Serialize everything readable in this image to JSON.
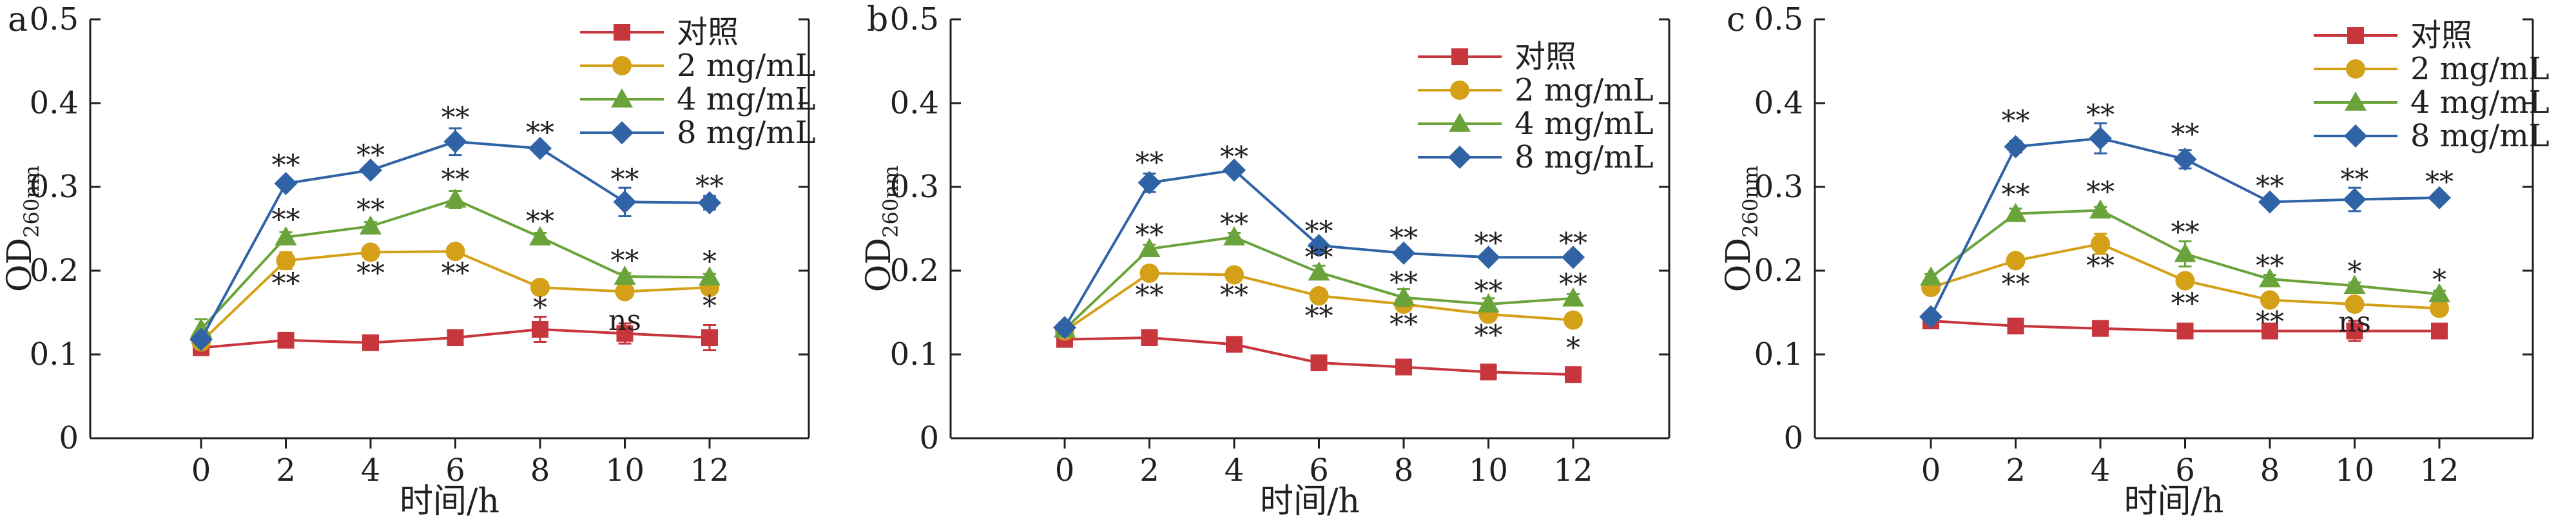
{
  "series_colors": [
    "#c8363d",
    "#d4a017",
    "#6aa33a",
    "#2f63a6"
  ],
  "marker_shapes": [
    "square",
    "circle",
    "triangle",
    "diamond"
  ],
  "chart_data": [
    {
      "type": "line",
      "panel_label": "a",
      "xlabel": "时间/h",
      "ylabel": "OD",
      "ylabel_subscript": "260nm",
      "x": [
        0,
        2,
        4,
        6,
        8,
        10,
        12
      ],
      "x_tick_labels": [
        "0",
        "2",
        "4",
        "6",
        "8",
        "10",
        "12"
      ],
      "ylim": [
        0,
        0.5
      ],
      "y_ticks": [
        0,
        0.1,
        0.2,
        0.3,
        0.4,
        0.5
      ],
      "y_tick_labels": [
        "0",
        "0.1",
        "0.2",
        "0.3",
        "0.4",
        "0.5"
      ],
      "grid": false,
      "legend_position": "top-right",
      "series": [
        {
          "name": "对照",
          "values": [
            0.108,
            0.117,
            0.114,
            0.12,
            0.13,
            0.125,
            0.12
          ],
          "errors": [
            0.008,
            0.004,
            0.004,
            0.004,
            0.015,
            0.012,
            0.015
          ]
        },
        {
          "name": "2 mg/mL",
          "values": [
            0.115,
            0.212,
            0.222,
            0.223,
            0.18,
            0.175,
            0.18
          ],
          "errors": [
            0.006,
            0.01,
            0.005,
            0.004,
            0.004,
            0.004,
            0.006
          ]
        },
        {
          "name": "4 mg/mL",
          "values": [
            0.13,
            0.24,
            0.253,
            0.285,
            0.24,
            0.193,
            0.192
          ],
          "errors": [
            0.012,
            0.006,
            0.005,
            0.01,
            0.005,
            0.004,
            0.004
          ]
        },
        {
          "name": "8 mg/mL",
          "values": [
            0.118,
            0.304,
            0.32,
            0.354,
            0.346,
            0.282,
            0.281
          ],
          "errors": [
            0.006,
            0.004,
            0.004,
            0.016,
            0.006,
            0.017,
            0.008
          ]
        }
      ],
      "annotations": [
        {
          "x": 2,
          "y": 0.325,
          "text": "**"
        },
        {
          "x": 4,
          "y": 0.337,
          "text": "**"
        },
        {
          "x": 6,
          "y": 0.382,
          "text": "**"
        },
        {
          "x": 8,
          "y": 0.364,
          "text": "**"
        },
        {
          "x": 10,
          "y": 0.308,
          "text": "**"
        },
        {
          "x": 12,
          "y": 0.3,
          "text": "**"
        },
        {
          "x": 2,
          "y": 0.26,
          "text": "**"
        },
        {
          "x": 4,
          "y": 0.272,
          "text": "**"
        },
        {
          "x": 6,
          "y": 0.308,
          "text": "**"
        },
        {
          "x": 8,
          "y": 0.258,
          "text": "**"
        },
        {
          "x": 10,
          "y": 0.211,
          "text": "**"
        },
        {
          "x": 12,
          "y": 0.21,
          "text": "*"
        },
        {
          "x": 2,
          "y": 0.184,
          "text": "**"
        },
        {
          "x": 4,
          "y": 0.196,
          "text": "**"
        },
        {
          "x": 6,
          "y": 0.196,
          "text": "**"
        },
        {
          "x": 8,
          "y": 0.155,
          "text": "*"
        },
        {
          "x": 10,
          "y": 0.14,
          "text": "ns"
        },
        {
          "x": 12,
          "y": 0.157,
          "text": "*"
        }
      ]
    },
    {
      "type": "line",
      "panel_label": "b",
      "xlabel": "时间/h",
      "ylabel": "OD",
      "ylabel_subscript": "260nm",
      "x": [
        0,
        2,
        4,
        6,
        8,
        10,
        12
      ],
      "x_tick_labels": [
        "0",
        "2",
        "4",
        "6",
        "8",
        "10",
        "12"
      ],
      "ylim": [
        0,
        0.5
      ],
      "y_ticks": [
        0,
        0.1,
        0.2,
        0.3,
        0.4,
        0.5
      ],
      "y_tick_labels": [
        "0",
        "0.1",
        "0.2",
        "0.3",
        "0.4",
        "0.5"
      ],
      "grid": false,
      "legend_position": "top-right",
      "series": [
        {
          "name": "对照",
          "values": [
            0.118,
            0.12,
            0.112,
            0.09,
            0.085,
            0.079,
            0.076
          ],
          "errors": [
            0.004,
            0.004,
            0.006,
            0.004,
            0.003,
            0.003,
            0.005
          ]
        },
        {
          "name": "2 mg/mL",
          "values": [
            0.128,
            0.197,
            0.195,
            0.17,
            0.16,
            0.148,
            0.141
          ],
          "errors": [
            0.005,
            0.005,
            0.004,
            0.004,
            0.005,
            0.004,
            0.006
          ]
        },
        {
          "name": "4 mg/mL",
          "values": [
            0.13,
            0.226,
            0.24,
            0.198,
            0.168,
            0.16,
            0.167
          ],
          "errors": [
            0.005,
            0.005,
            0.005,
            0.008,
            0.01,
            0.007,
            0.005
          ]
        },
        {
          "name": "8 mg/mL",
          "values": [
            0.132,
            0.305,
            0.32,
            0.23,
            0.221,
            0.216,
            0.216
          ],
          "errors": [
            0.006,
            0.011,
            0.004,
            0.006,
            0.006,
            0.004,
            0.006
          ]
        }
      ],
      "annotations": [
        {
          "x": 2,
          "y": 0.328,
          "text": "**"
        },
        {
          "x": 4,
          "y": 0.335,
          "text": "**"
        },
        {
          "x": 6,
          "y": 0.246,
          "text": "**"
        },
        {
          "x": 8,
          "y": 0.238,
          "text": "**"
        },
        {
          "x": 10,
          "y": 0.232,
          "text": "**"
        },
        {
          "x": 12,
          "y": 0.232,
          "text": "**"
        },
        {
          "x": 2,
          "y": 0.242,
          "text": "**"
        },
        {
          "x": 4,
          "y": 0.255,
          "text": "**"
        },
        {
          "x": 6,
          "y": 0.215,
          "text": "**"
        },
        {
          "x": 8,
          "y": 0.185,
          "text": "**"
        },
        {
          "x": 10,
          "y": 0.175,
          "text": "**"
        },
        {
          "x": 12,
          "y": 0.183,
          "text": "**"
        },
        {
          "x": 2,
          "y": 0.17,
          "text": "**"
        },
        {
          "x": 4,
          "y": 0.17,
          "text": "**"
        },
        {
          "x": 6,
          "y": 0.145,
          "text": "**"
        },
        {
          "x": 8,
          "y": 0.135,
          "text": "**"
        },
        {
          "x": 10,
          "y": 0.122,
          "text": "**"
        },
        {
          "x": 12,
          "y": 0.107,
          "text": "*"
        }
      ]
    },
    {
      "type": "line",
      "panel_label": "c",
      "xlabel": "时间/h",
      "ylabel": "OD",
      "ylabel_subscript": "260nm",
      "x": [
        0,
        2,
        4,
        6,
        8,
        10,
        12
      ],
      "x_tick_labels": [
        "0",
        "2",
        "4",
        "6",
        "8",
        "10",
        "12"
      ],
      "ylim": [
        0,
        0.5
      ],
      "y_ticks": [
        0,
        0.1,
        0.2,
        0.3,
        0.4,
        0.5
      ],
      "y_tick_labels": [
        "0",
        "0.1",
        "0.2",
        "0.3",
        "0.4",
        "0.5"
      ],
      "grid": false,
      "legend_position": "top-right",
      "series": [
        {
          "name": "对照",
          "values": [
            0.14,
            0.134,
            0.131,
            0.128,
            0.128,
            0.128,
            0.128
          ],
          "errors": [
            0.004,
            0.006,
            0.003,
            0.003,
            0.003,
            0.012,
            0.005
          ]
        },
        {
          "name": "2 mg/mL",
          "values": [
            0.18,
            0.212,
            0.232,
            0.188,
            0.165,
            0.16,
            0.155
          ],
          "errors": [
            0.004,
            0.004,
            0.012,
            0.008,
            0.004,
            0.004,
            0.004
          ]
        },
        {
          "name": "4 mg/mL",
          "values": [
            0.192,
            0.268,
            0.272,
            0.22,
            0.19,
            0.182,
            0.172
          ],
          "errors": [
            0.004,
            0.006,
            0.004,
            0.015,
            0.005,
            0.004,
            0.004
          ]
        },
        {
          "name": "8 mg/mL",
          "values": [
            0.145,
            0.348,
            0.358,
            0.333,
            0.282,
            0.285,
            0.287
          ],
          "errors": [
            0.006,
            0.007,
            0.018,
            0.011,
            0.004,
            0.014,
            0.004
          ]
        }
      ],
      "annotations": [
        {
          "x": 2,
          "y": 0.378,
          "text": "**"
        },
        {
          "x": 4,
          "y": 0.385,
          "text": "**"
        },
        {
          "x": 6,
          "y": 0.362,
          "text": "**"
        },
        {
          "x": 8,
          "y": 0.3,
          "text": "**"
        },
        {
          "x": 10,
          "y": 0.308,
          "text": "**"
        },
        {
          "x": 12,
          "y": 0.305,
          "text": "**"
        },
        {
          "x": 2,
          "y": 0.29,
          "text": "**"
        },
        {
          "x": 4,
          "y": 0.293,
          "text": "**"
        },
        {
          "x": 6,
          "y": 0.245,
          "text": "**"
        },
        {
          "x": 8,
          "y": 0.205,
          "text": "**"
        },
        {
          "x": 10,
          "y": 0.198,
          "text": "*"
        },
        {
          "x": 12,
          "y": 0.188,
          "text": "*"
        },
        {
          "x": 2,
          "y": 0.183,
          "text": "**"
        },
        {
          "x": 4,
          "y": 0.205,
          "text": "**"
        },
        {
          "x": 6,
          "y": 0.16,
          "text": "**"
        },
        {
          "x": 8,
          "y": 0.138,
          "text": "**"
        },
        {
          "x": 10,
          "y": 0.138,
          "text": "ns"
        }
      ]
    }
  ]
}
